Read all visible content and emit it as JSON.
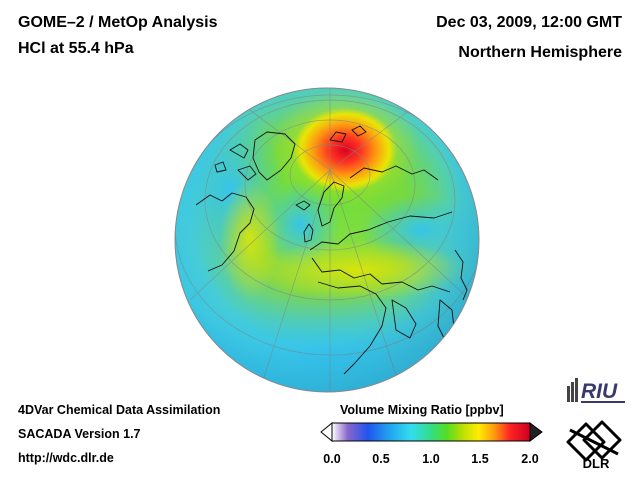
{
  "header": {
    "title_line1": "GOME–2 / MetOp Analysis",
    "title_line2": "HCl at 55.4 hPa",
    "datetime": "Dec 03, 2009, 12:00 GMT",
    "hemisphere": "Northern Hemisphere"
  },
  "footer": {
    "line1": "4DVar Chemical Data Assimilation",
    "line2": "SACADA Version 1.7",
    "line3": "http://wdc.dlr.de"
  },
  "colorbar": {
    "title": "Volume Mixing Ratio [ppbv]",
    "ticks": [
      "0.0",
      "0.5",
      "1.0",
      "1.5",
      "2.0"
    ],
    "range": [
      0.0,
      2.0
    ]
  },
  "logos": {
    "riu": "RIU",
    "dlr": "DLR"
  },
  "colors": {
    "cyan": "#33ccf0",
    "green": "#55dd22",
    "yellow": "#e6e600",
    "orange": "#ff9900",
    "red": "#ff2222",
    "dark_red": "#cc0022"
  }
}
